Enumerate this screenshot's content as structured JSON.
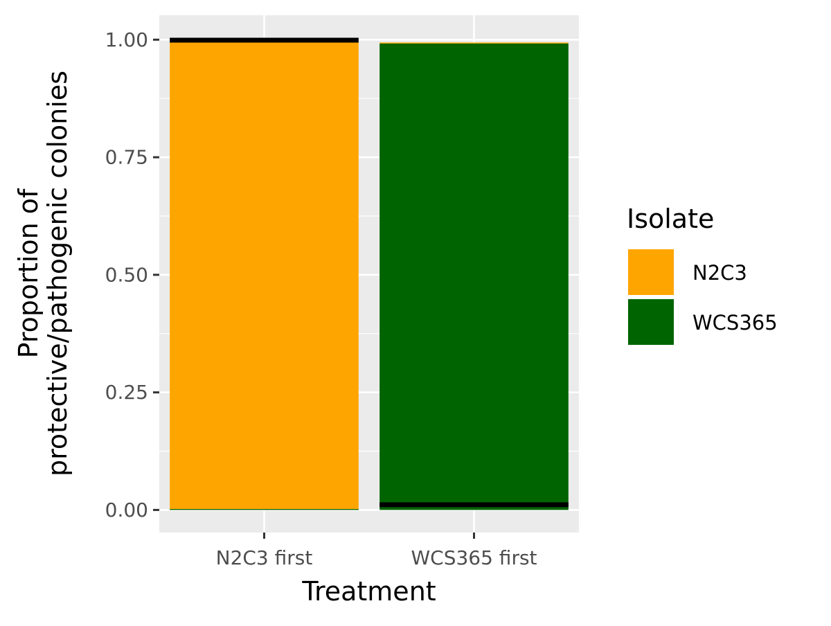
{
  "chart_data": {
    "type": "bar",
    "stacked": true,
    "categories": [
      "N2C3 first",
      "WCS365 first"
    ],
    "series": [
      {
        "name": "WCS365",
        "color": "#006400",
        "values": [
          0.002,
          0.992
        ]
      },
      {
        "name": "N2C3",
        "color": "#FFA500",
        "values": [
          0.993,
          0.002
        ]
      }
    ],
    "error_markers": {
      "color": "#000000",
      "values": [
        0.999,
        0.011
      ]
    },
    "yticks": [
      "0.00",
      "0.25",
      "0.50",
      "0.75",
      "1.00"
    ],
    "ytick_values": [
      0,
      0.25,
      0.5,
      0.75,
      1.0
    ],
    "ylim": [
      -0.048,
      1.052
    ],
    "xlabel": "Treatment",
    "ylabel_lines": [
      "Proportion of",
      "protective/pathogenic colonies"
    ],
    "legend": {
      "title": "Isolate",
      "position": "right",
      "items": [
        {
          "label": "N2C3",
          "color": "#FFA500"
        },
        {
          "label": "WCS365",
          "color": "#006400"
        }
      ]
    },
    "grid": true,
    "panel_background": "#EBEBEB"
  }
}
